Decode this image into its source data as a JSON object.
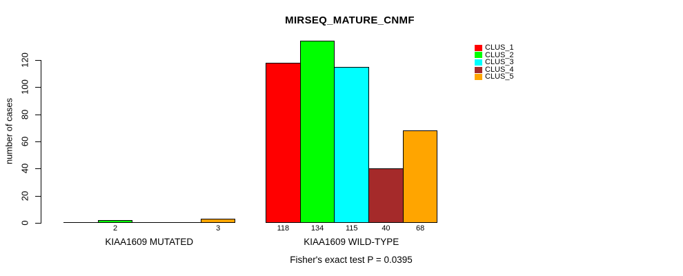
{
  "page": {
    "background": "#ffffff"
  },
  "chart_data": {
    "type": "bar",
    "title": "MIRSEQ_MATURE_CNMF",
    "ylabel": "number of cases",
    "xlabel": "",
    "footer": "Fisher's exact test P = 0.0395",
    "yticks": [
      0,
      20,
      40,
      60,
      80,
      100,
      120
    ],
    "ylim": [
      0,
      134
    ],
    "grid": false,
    "legend_position": "top-right",
    "value_labels_shown_under_bars": true,
    "zero_bars_drawn_as_flat_line": true,
    "categories": [
      "KIAA1609 MUTATED",
      "KIAA1609 WILD-TYPE"
    ],
    "series": [
      {
        "name": "CLUS_1",
        "color": "#ff0000",
        "values": [
          0,
          118
        ]
      },
      {
        "name": "CLUS_2",
        "color": "#00ff00",
        "values": [
          2,
          134
        ]
      },
      {
        "name": "CLUS_3",
        "color": "#00ffff",
        "values": [
          0,
          115
        ]
      },
      {
        "name": "CLUS_4",
        "color": "#a52a2a",
        "values": [
          0,
          40
        ]
      },
      {
        "name": "CLUS_5",
        "color": "#ffa500",
        "values": [
          3,
          68
        ]
      }
    ],
    "axis_color": "#000000",
    "text_color": "#000000"
  }
}
